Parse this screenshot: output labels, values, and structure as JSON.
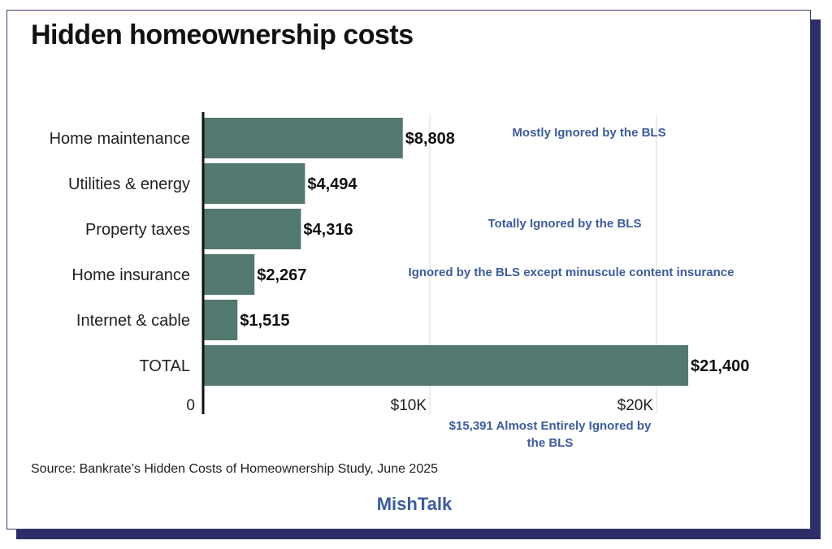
{
  "chart_data": {
    "type": "bar",
    "orientation": "horizontal",
    "title": "Hidden homeownership costs",
    "categories": [
      "Home maintenance",
      "Utilities & energy",
      "Property taxes",
      "Home insurance",
      "Internet & cable",
      "TOTAL"
    ],
    "values": [
      8808,
      4494,
      4316,
      2267,
      1515,
      21400
    ],
    "data_labels": [
      "$8,808",
      "$4,494",
      "$4,316",
      "$2,267",
      "$1,515",
      "$21,400"
    ],
    "xlim": [
      0,
      25000
    ],
    "xticks": [
      0,
      10000,
      20000
    ],
    "xtick_labels": [
      "0",
      "$10K",
      "$20K"
    ],
    "grid": true,
    "bar_color": "#52786f",
    "annotations": [
      {
        "text": "Mostly Ignored by the BLS",
        "category": "Home maintenance"
      },
      {
        "text": "Totally Ignored by the BLS",
        "category": "Property taxes"
      },
      {
        "text": "Ignored by the BLS except minuscule content insurance",
        "category": "Home insurance"
      },
      {
        "text": "$15,391 Almost Entirely Ignored by",
        "text2": "the BLS"
      }
    ],
    "annotation_color": "#3d5c9c"
  },
  "source": "Source: Bankrate’s Hidden Costs of Homeownership Study, June 2025",
  "brand": "MishTalk"
}
